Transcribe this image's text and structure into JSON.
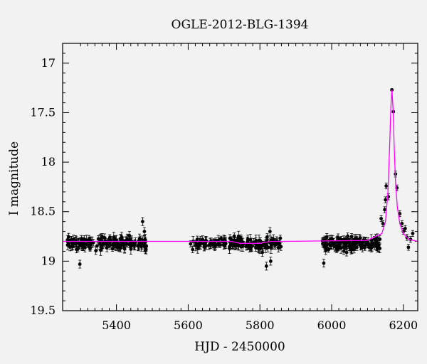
{
  "chart_data": {
    "type": "scatter",
    "title": "OGLE-2012-BLG-1394",
    "xlabel": "HJD - 2450000",
    "ylabel": "I magnitude",
    "xlim": [
      5250,
      6240
    ],
    "ylim": [
      19.5,
      16.8
    ],
    "y_inverted": true,
    "x_ticks": [
      5400,
      5600,
      5800,
      6000,
      6200
    ],
    "y_ticks": [
      17,
      17.5,
      18,
      18.5,
      19,
      19.5
    ],
    "y_tick_labels": [
      "17",
      "17.5",
      "18",
      "18.5",
      "19",
      "19.5"
    ],
    "grid": false,
    "colors": {
      "points": "#000000",
      "model": "#ff00ff",
      "background": "#f2f2f2",
      "frame": "#000000"
    },
    "model": {
      "name": "microlensing model",
      "baseline": 18.8,
      "t0": 6168,
      "peak": 17.27,
      "x": [
        5250,
        5720,
        5745,
        5800,
        5830,
        5870,
        6100,
        6140,
        6150,
        6157,
        6162,
        6165,
        6168,
        6171,
        6174,
        6178,
        6183,
        6190,
        6200,
        6215,
        6240
      ],
      "y": [
        18.8,
        18.8,
        18.82,
        18.82,
        18.8,
        18.8,
        18.79,
        18.72,
        18.6,
        18.3,
        17.8,
        17.45,
        17.27,
        17.45,
        17.8,
        18.2,
        18.45,
        18.62,
        18.72,
        18.78,
        18.8
      ]
    },
    "series": [
      {
        "seasons": [
          {
            "x_range": [
              5262,
              5486
            ],
            "count": 170
          },
          {
            "x_range": [
              5606,
              5860
            ],
            "count": 150
          },
          {
            "x_range": [
              5972,
              6135
            ],
            "count": 140
          }
        ],
        "baseline_mag": 18.82,
        "scatter_mag": 0.045,
        "outliers": [
          {
            "x": 5298,
            "y": 19.03
          },
          {
            "x": 5473,
            "y": 18.6
          },
          {
            "x": 5478,
            "y": 18.7
          },
          {
            "x": 5818,
            "y": 19.05
          },
          {
            "x": 5830,
            "y": 19.0
          },
          {
            "x": 5828,
            "y": 18.7
          },
          {
            "x": 5978,
            "y": 19.02
          }
        ],
        "event_points": [
          {
            "x": 6138,
            "y": 18.57
          },
          {
            "x": 6143,
            "y": 18.62
          },
          {
            "x": 6148,
            "y": 18.48
          },
          {
            "x": 6150,
            "y": 18.38
          },
          {
            "x": 6152,
            "y": 18.24
          },
          {
            "x": 6158,
            "y": 18.35
          },
          {
            "x": 6168,
            "y": 17.27
          },
          {
            "x": 6172,
            "y": 17.49
          },
          {
            "x": 6178,
            "y": 18.12
          },
          {
            "x": 6182,
            "y": 18.26
          },
          {
            "x": 6190,
            "y": 18.52
          },
          {
            "x": 6196,
            "y": 18.62
          },
          {
            "x": 6200,
            "y": 18.7
          },
          {
            "x": 6205,
            "y": 18.67
          },
          {
            "x": 6210,
            "y": 18.76
          },
          {
            "x": 6214,
            "y": 18.86
          },
          {
            "x": 6220,
            "y": 18.78
          },
          {
            "x": 6226,
            "y": 18.72
          }
        ]
      }
    ]
  }
}
